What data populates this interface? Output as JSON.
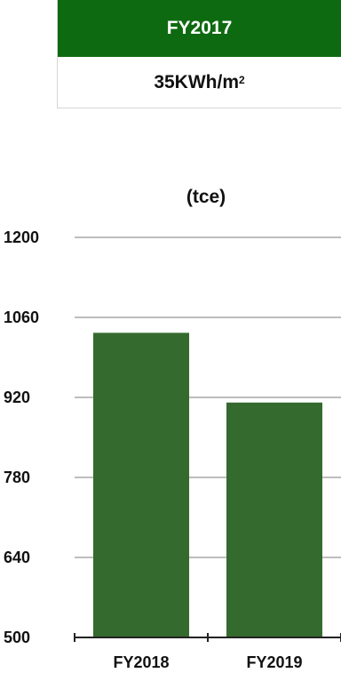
{
  "kpi": {
    "header": "FY2017",
    "value": "35KWh/m",
    "value_superscript": "2",
    "header_color": "#0e6a10"
  },
  "chart_data": {
    "type": "bar",
    "ylabel": "(tce)",
    "categories": [
      "FY2018",
      "FY2019"
    ],
    "values": [
      1033,
      911
    ],
    "ylim": [
      500,
      1200
    ],
    "yticks": [
      "1200",
      "1060",
      "920",
      "780",
      "640",
      "500"
    ],
    "ytick_values": [
      1200,
      1060,
      920,
      780,
      640,
      500
    ],
    "grid": true,
    "bar_color": "#356a2e",
    "grid_color": "#bdbdbd"
  }
}
